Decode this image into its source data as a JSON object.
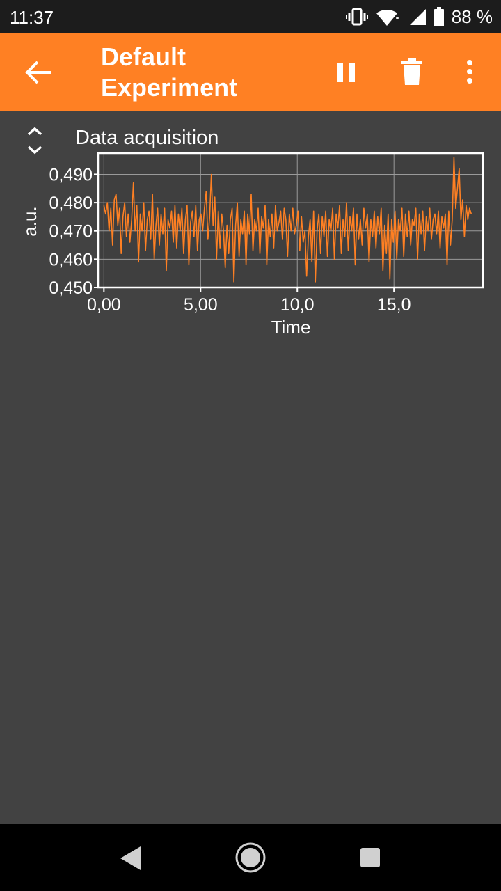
{
  "status_bar": {
    "time": "11:37",
    "battery_text": "88 %",
    "icons": [
      "vibrate-icon",
      "wifi-icon",
      "signal-icon",
      "battery-icon"
    ]
  },
  "app_bar": {
    "title": "Default Experiment",
    "back_icon": "arrow-back-icon",
    "actions": [
      "pause-icon",
      "delete-icon",
      "more-vert-icon"
    ],
    "color": "#ff8023"
  },
  "graph": {
    "label": "Data acquisition",
    "expand_icon": "unfold-icon"
  },
  "chart_data": {
    "type": "line",
    "title": "Data acquisition",
    "xlabel": "Time",
    "ylabel": "a.u.",
    "xlim": [
      -0.3,
      19.6
    ],
    "ylim": [
      0.45,
      0.4975
    ],
    "x_ticks": [
      "0,00",
      "5,00",
      "10,0",
      "15,0"
    ],
    "x_tick_values": [
      0,
      5,
      10,
      15
    ],
    "y_ticks": [
      "0,450",
      "0,460",
      "0,470",
      "0,480",
      "0,490"
    ],
    "y_tick_values": [
      0.45,
      0.46,
      0.47,
      0.48,
      0.49
    ],
    "grid": true,
    "line_color": "#ff8023",
    "series": [
      {
        "x_start": 0,
        "x_end": 19.0,
        "values": [
          0.479,
          0.476,
          0.48,
          0.47,
          0.478,
          0.465,
          0.481,
          0.483,
          0.472,
          0.478,
          0.462,
          0.475,
          0.48,
          0.468,
          0.476,
          0.466,
          0.474,
          0.487,
          0.47,
          0.479,
          0.459,
          0.476,
          0.47,
          0.48,
          0.463,
          0.474,
          0.477,
          0.467,
          0.483,
          0.46,
          0.472,
          0.478,
          0.465,
          0.476,
          0.469,
          0.478,
          0.456,
          0.474,
          0.471,
          0.477,
          0.466,
          0.479,
          0.464,
          0.476,
          0.47,
          0.478,
          0.462,
          0.474,
          0.479,
          0.458,
          0.473,
          0.477,
          0.468,
          0.479,
          0.463,
          0.474,
          0.476,
          0.47,
          0.478,
          0.484,
          0.467,
          0.475,
          0.49,
          0.472,
          0.482,
          0.46,
          0.477,
          0.464,
          0.476,
          0.47,
          0.457,
          0.472,
          0.462,
          0.474,
          0.478,
          0.452,
          0.472,
          0.48,
          0.461,
          0.474,
          0.469,
          0.477,
          0.458,
          0.476,
          0.469,
          0.483,
          0.463,
          0.474,
          0.47,
          0.478,
          0.462,
          0.475,
          0.471,
          0.479,
          0.458,
          0.474,
          0.468,
          0.476,
          0.464,
          0.479,
          0.47,
          0.473,
          0.477,
          0.467,
          0.478,
          0.474,
          0.461,
          0.476,
          0.47,
          0.478,
          0.469,
          0.472,
          0.477,
          0.463,
          0.475,
          0.466,
          0.47,
          0.454,
          0.468,
          0.474,
          0.459,
          0.477,
          0.452,
          0.47,
          0.476,
          0.462,
          0.475,
          0.468,
          0.477,
          0.461,
          0.474,
          0.47,
          0.478,
          0.46,
          0.476,
          0.471,
          0.479,
          0.462,
          0.474,
          0.468,
          0.48,
          0.463,
          0.475,
          0.47,
          0.478,
          0.458,
          0.476,
          0.467,
          0.474,
          0.465,
          0.478,
          0.471,
          0.476,
          0.459,
          0.474,
          0.468,
          0.477,
          0.464,
          0.475,
          0.469,
          0.478,
          0.456,
          0.472,
          0.462,
          0.476,
          0.453,
          0.474,
          0.466,
          0.477,
          0.46,
          0.474,
          0.47,
          0.478,
          0.461,
          0.476,
          0.468,
          0.477,
          0.465,
          0.474,
          0.472,
          0.478,
          0.46,
          0.476,
          0.469,
          0.477,
          0.463,
          0.475,
          0.47,
          0.478,
          0.467,
          0.474,
          0.476,
          0.469,
          0.477,
          0.464,
          0.475,
          0.471,
          0.476,
          0.458,
          0.477,
          0.465,
          0.474,
          0.496,
          0.478,
          0.485,
          0.492,
          0.474,
          0.481,
          0.468,
          0.479,
          0.474,
          0.478,
          0.476
        ]
      }
    ]
  },
  "nav_bar": {
    "icons": [
      "nav-back-icon",
      "nav-home-icon",
      "nav-recents-icon"
    ]
  }
}
